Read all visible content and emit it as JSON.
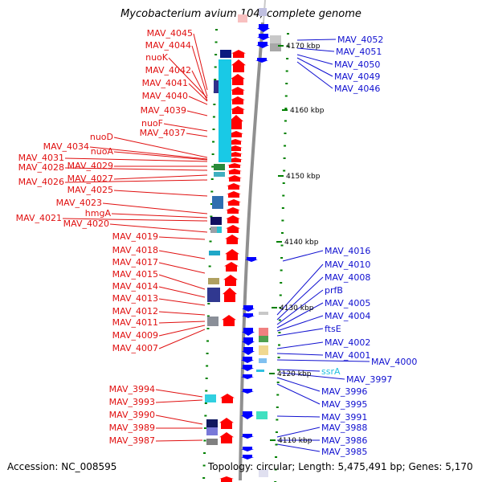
{
  "title": "Mycobacterium avium 104, complete genome",
  "accession": "Accession: NC_008595",
  "summary": "Topology: circular; Length: 5,475,491 bp; Genes: 5,170",
  "colors": {
    "left_label": "#e01010",
    "right_label": "#1010d0",
    "rna_label": "#20c0e0",
    "forward_arrow": "#ff0000",
    "reverse_arrow": "#0000ff",
    "axis": "#909090",
    "tick": "#008000"
  },
  "scale_ticks": [
    "4170 kbp",
    "4160 kbp",
    "4150 kbp",
    "4140 kbp",
    "4130 kbp",
    "4120 kbp",
    "4110 kbp"
  ],
  "left_genes": [
    "MAV_4045",
    "MAV_4044",
    "nuoK",
    "MAV_4042",
    "MAV_4041",
    "MAV_4040",
    "MAV_4039",
    "nuoF",
    "MAV_4037",
    "nuoD",
    "MAV_4034",
    "nuoA",
    "MAV_4031",
    "MAV_4029",
    "MAV_4028",
    "MAV_4027",
    "MAV_4026",
    "MAV_4025",
    "MAV_4023",
    "hmgA",
    "MAV_4021",
    "MAV_4020",
    "MAV_4019",
    "MAV_4018",
    "MAV_4017",
    "MAV_4015",
    "MAV_4014",
    "MAV_4013",
    "MAV_4012",
    "MAV_4011",
    "MAV_4009",
    "MAV_4007",
    "MAV_3994",
    "MAV_3993",
    "MAV_3990",
    "MAV_3989",
    "MAV_3987"
  ],
  "right_genes": [
    "MAV_4052",
    "MAV_4051",
    "MAV_4050",
    "MAV_4049",
    "MAV_4046",
    "MAV_4016",
    "MAV_4010",
    "MAV_4008",
    "prfB",
    "MAV_4005",
    "MAV_4004",
    "ftsE",
    "MAV_4002",
    "MAV_4001",
    "MAV_4000",
    "ssrA",
    "MAV_3997",
    "MAV_3996",
    "MAV_3995",
    "MAV_3991",
    "MAV_3988",
    "MAV_3986",
    "MAV_3985"
  ]
}
